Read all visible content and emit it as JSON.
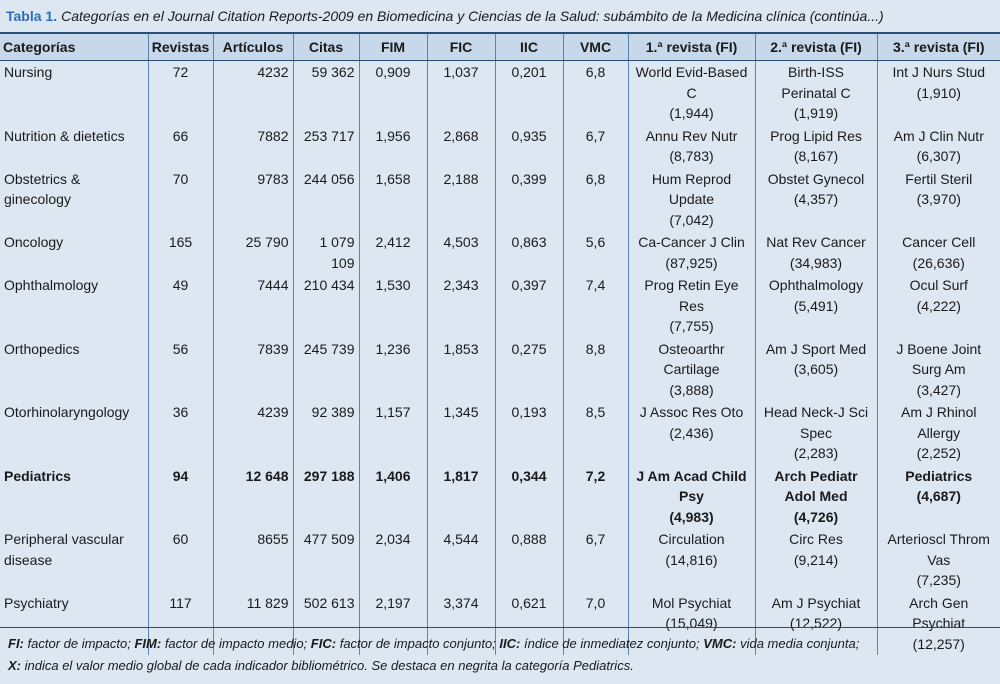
{
  "caption": {
    "label": "Tabla 1.",
    "text": "Categorías en el Journal Citation Reports-2009 en Biomedicina y Ciencias de la Salud: subámbito de la Medicina clínica (continúa...)"
  },
  "table": {
    "header": [
      "Categorías",
      "Revistas",
      "Artículos",
      "Citas",
      "FIM",
      "FIC",
      "IIC",
      "VMC",
      "1.ª revista (FI)",
      "2.ª revista (FI)",
      "3.ª revista (FI)"
    ],
    "rows": [
      {
        "cells": [
          "Nursing",
          "72",
          "4232",
          "59 362",
          "0,909",
          "1,037",
          "0,201",
          "6,8"
        ],
        "journals": [
          {
            "name": "World Evid-Based C",
            "fi": "(1,944)"
          },
          {
            "name": "Birth-ISS Perinatal C",
            "fi": "(1,919)"
          },
          {
            "name": "Int J Nurs Stud",
            "fi": "(1,910)"
          }
        ]
      },
      {
        "cells": [
          "Nutrition & dietetics",
          "66",
          "7882",
          "253 717",
          "1,956",
          "2,868",
          "0,935",
          "6,7"
        ],
        "journals": [
          {
            "name": "Annu Rev Nutr",
            "fi": "(8,783)"
          },
          {
            "name": "Prog Lipid Res",
            "fi": "(8,167)"
          },
          {
            "name": "Am J Clin Nutr",
            "fi": "(6,307)"
          }
        ]
      },
      {
        "cells": [
          "Obstetrics & ginecology",
          "70",
          "9783",
          "244 056",
          "1,658",
          "2,188",
          "0,399",
          "6,8"
        ],
        "journals": [
          {
            "name": "Hum Reprod Update",
            "fi": "(7,042)"
          },
          {
            "name": "Obstet Gynecol",
            "fi": "(4,357)"
          },
          {
            "name": "Fertil Steril",
            "fi": "(3,970)"
          }
        ]
      },
      {
        "cells": [
          "Oncology",
          "165",
          "25 790",
          "1 079 109",
          "2,412",
          "4,503",
          "0,863",
          "5,6"
        ],
        "journals": [
          {
            "name": "Ca-Cancer J Clin",
            "fi": "(87,925)"
          },
          {
            "name": "Nat Rev Cancer",
            "fi": "(34,983)"
          },
          {
            "name": "Cancer Cell",
            "fi": "(26,636)"
          }
        ]
      },
      {
        "cells": [
          "Ophthalmology",
          "49",
          "7444",
          "210 434",
          "1,530",
          "2,343",
          "0,397",
          "7,4"
        ],
        "journals": [
          {
            "name": "Prog Retin Eye Res",
            "fi": "(7,755)"
          },
          {
            "name": "Ophthalmology",
            "fi": "(5,491)"
          },
          {
            "name": "Ocul Surf",
            "fi": "(4,222)"
          }
        ]
      },
      {
        "cells": [
          "Orthopedics",
          "56",
          "7839",
          "245 739",
          "1,236",
          "1,853",
          "0,275",
          "8,8"
        ],
        "journals": [
          {
            "name": "Osteoarthr Cartilage",
            "fi": "(3,888)"
          },
          {
            "name": "Am J Sport Med",
            "fi": "(3,605)"
          },
          {
            "name": "J Boene Joint Surg Am",
            "fi": "(3,427)"
          }
        ]
      },
      {
        "cells": [
          "Otorhinolaryngology",
          "36",
          "4239",
          "92 389",
          "1,157",
          "1,345",
          "0,193",
          "8,5"
        ],
        "journals": [
          {
            "name": "J Assoc Res Oto",
            "fi": "(2,436)"
          },
          {
            "name": "Head Neck-J Sci Spec",
            "fi": "(2,283)"
          },
          {
            "name": "Am J Rhinol Allergy",
            "fi": "(2,252)"
          }
        ]
      },
      {
        "cells": [
          "Pediatrics",
          "94",
          "12 648",
          "297 188",
          "1,406",
          "1,817",
          "0,344",
          "7,2"
        ],
        "bold": true,
        "journals": [
          {
            "name": "J Am Acad Child Psy",
            "fi": "(4,983)"
          },
          {
            "name": "Arch Pediatr Adol Med",
            "fi": "(4,726)"
          },
          {
            "name": "Pediatrics",
            "fi": "(4,687)"
          }
        ]
      },
      {
        "cells": [
          "Peripheral vascular disease",
          "60",
          "8655",
          "477 509",
          "2,034",
          "4,544",
          "0,888",
          "6,7"
        ],
        "journals": [
          {
            "name": "Circulation",
            "fi": "(14,816)"
          },
          {
            "name": "Circ Res",
            "fi": "(9,214)"
          },
          {
            "name": "Arterioscl Throm Vas",
            "fi": "(7,235)"
          }
        ]
      },
      {
        "cells": [
          "Psychiatry",
          "117",
          "11 829",
          "502 613",
          "2,197",
          "3,374",
          "0,621",
          "7,0"
        ],
        "journals": [
          {
            "name": "Mol Psychiat",
            "fi": "(15,049)"
          },
          {
            "name": "Am J Psychiat",
            "fi": "(12,522)"
          },
          {
            "name": "Arch Gen Psychiat",
            "fi": "(12,257)"
          }
        ]
      }
    ]
  },
  "footnote": {
    "lines": [
      [
        {
          "term": "FI:",
          "text": "factor de impacto;"
        },
        {
          "term": "FIM:",
          "text": "factor de impacto medio;"
        },
        {
          "term": "FIC:",
          "text": "factor de impacto conjunto;"
        },
        {
          "term": "IIC:",
          "text": "índice de inmediatez conjunto;"
        },
        {
          "term": "VMC:",
          "text": "vida media conjunta;"
        }
      ],
      [
        {
          "term": "X:",
          "text": "indica el valor medio global de cada indicador bibliométrico. Se destaca en negrita la categoría Pediatrics."
        }
      ]
    ]
  }
}
